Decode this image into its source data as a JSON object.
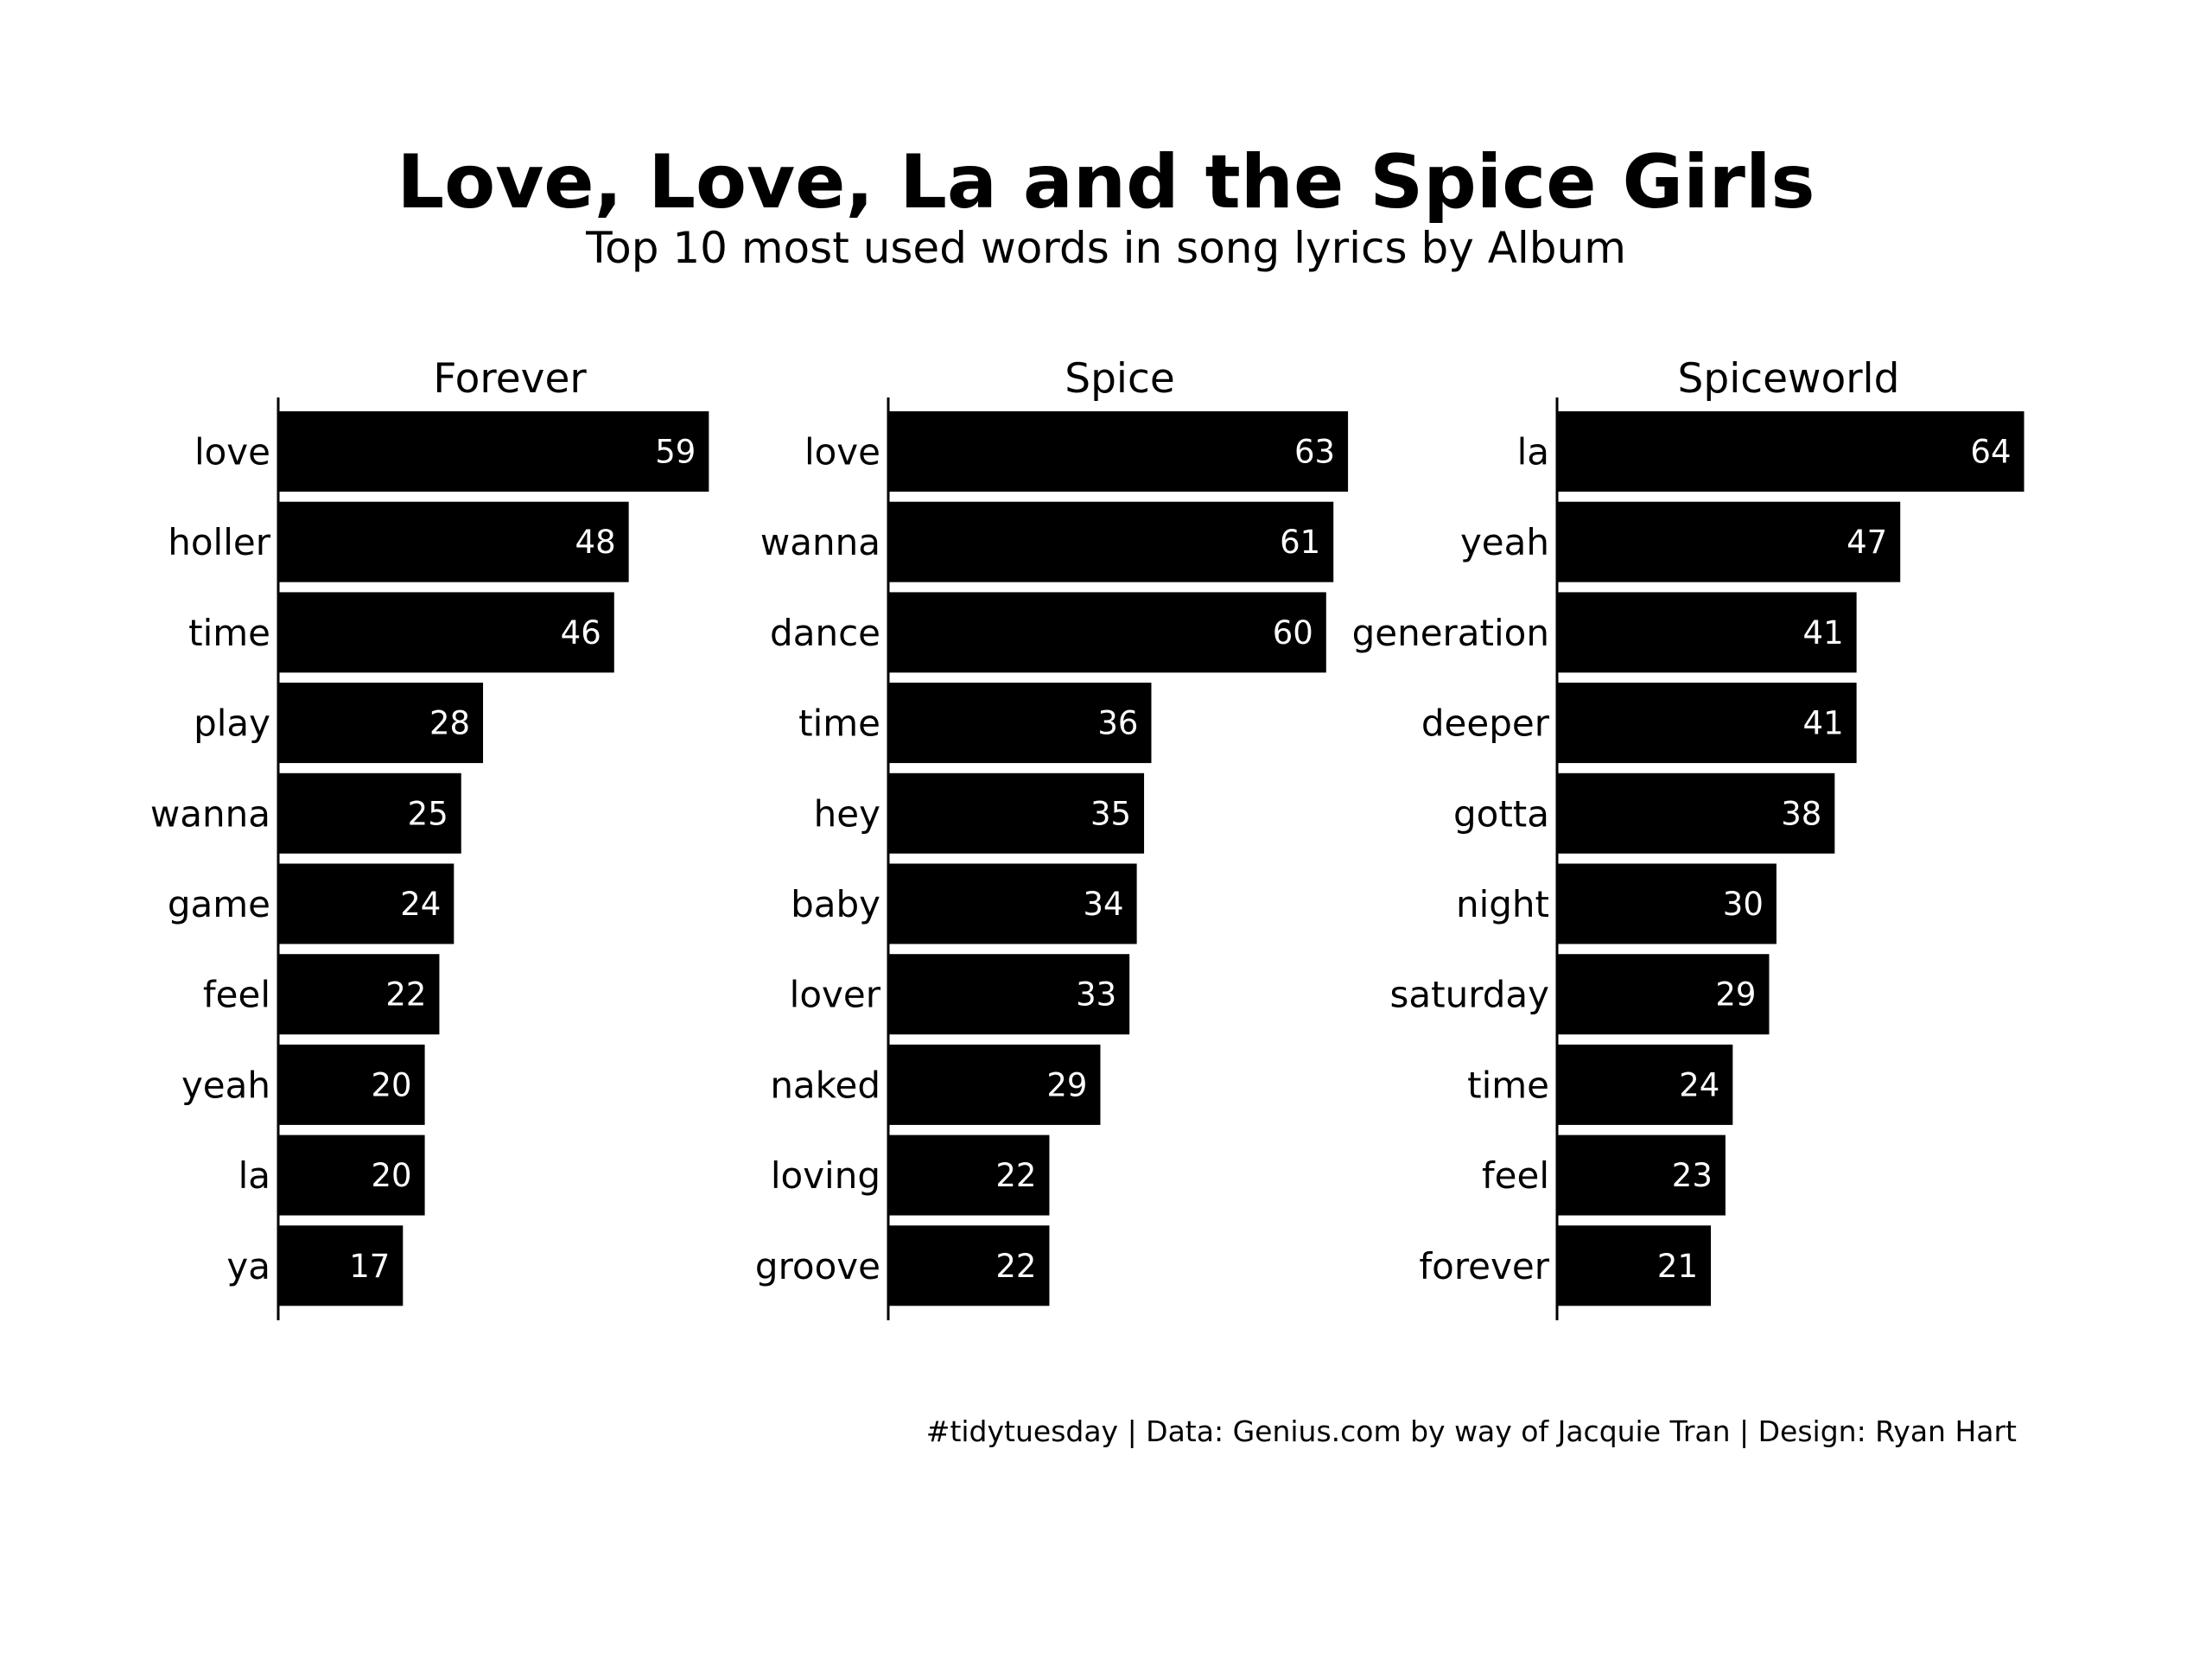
{
  "chart_data": {
    "type": "bar",
    "orientation": "horizontal",
    "title": "Love, Love, La and the Spice Girls",
    "subtitle": "Top 10 most used words in song lyrics by Album",
    "caption": "#tidytuesday | Data: Genius.com by way of Jacquie Tran | Design: Ryan Hart",
    "bar_color": "#000000",
    "label_color": "#ffffff",
    "facets": [
      {
        "name": "Forever",
        "categories": [
          "love",
          "holler",
          "time",
          "play",
          "wanna",
          "game",
          "feel",
          "yeah",
          "la",
          "ya"
        ],
        "values": [
          59,
          48,
          46,
          28,
          25,
          24,
          22,
          20,
          20,
          17
        ]
      },
      {
        "name": "Spice",
        "categories": [
          "love",
          "wanna",
          "dance",
          "time",
          "hey",
          "baby",
          "lover",
          "naked",
          "loving",
          "groove"
        ],
        "values": [
          63,
          61,
          60,
          36,
          35,
          34,
          33,
          29,
          22,
          22
        ]
      },
      {
        "name": "Spiceworld",
        "categories": [
          "la",
          "yeah",
          "generation",
          "deeper",
          "gotta",
          "night",
          "saturday",
          "time",
          "feel",
          "forever"
        ],
        "values": [
          64,
          47,
          41,
          41,
          38,
          30,
          29,
          24,
          23,
          21
        ]
      }
    ]
  }
}
